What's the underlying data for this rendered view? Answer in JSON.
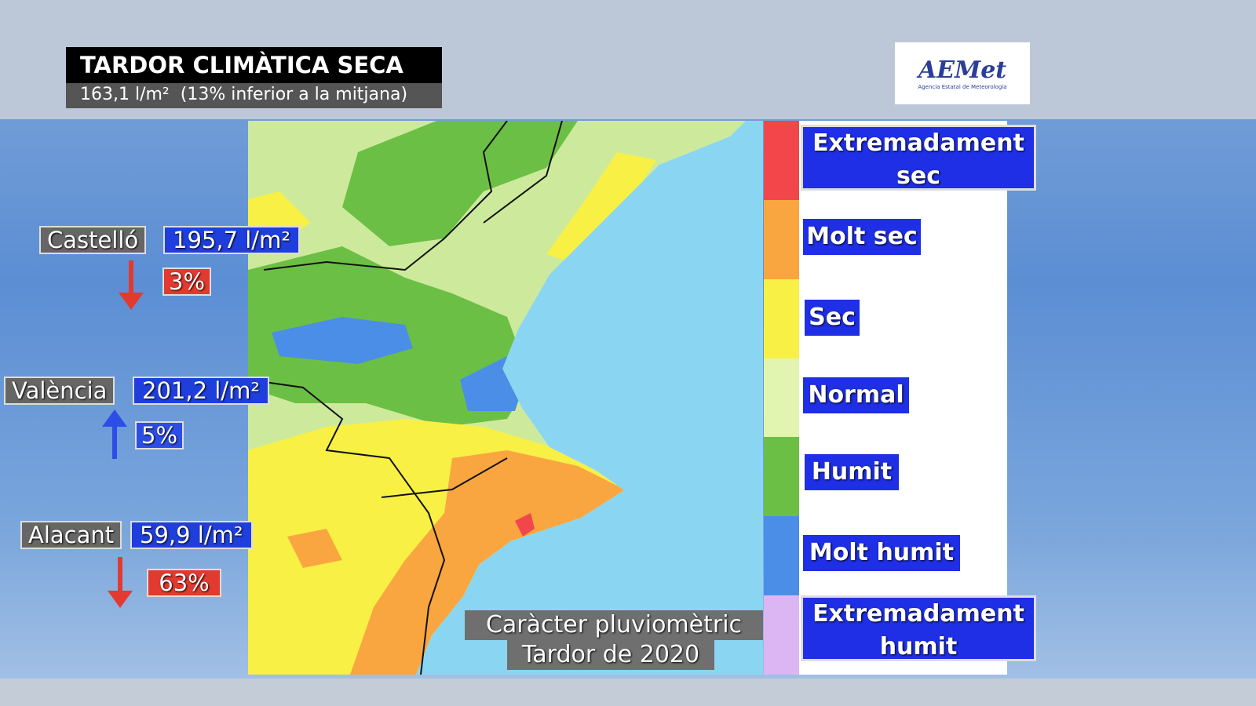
{
  "header": {
    "title": "TARDOR CLIMÀTICA SECA",
    "subtitle": "163,1 l/m²  (13% inferior a la mitjana)"
  },
  "logo": {
    "name": "AEMet",
    "agency": "Agencia Estatal de Meteorología"
  },
  "stations": [
    {
      "name": "Castelló",
      "amount": "195,7 l/m²",
      "change": "3%",
      "direction": "down"
    },
    {
      "name": "València",
      "amount": "201,2 l/m²",
      "change": "5%",
      "direction": "up"
    },
    {
      "name": "Alacant",
      "amount": "59,9 l/m²",
      "change": "63%",
      "direction": "down"
    }
  ],
  "legend": [
    {
      "label": "Extremadament sec",
      "color": "#f2474a"
    },
    {
      "label": "Molt sec",
      "color": "#f9a640"
    },
    {
      "label": "Sec",
      "color": "#f8f044"
    },
    {
      "label": "Normal",
      "color": "#e2f5b0"
    },
    {
      "label": "Humit",
      "color": "#6cbf45"
    },
    {
      "label": "Molt humit",
      "color": "#4a8ee8"
    },
    {
      "label": "Extremadament humit",
      "color": "#dcb6f2"
    }
  ],
  "map": {
    "caption": [
      "Caràcter pluviomètric",
      "Tardor de 2020"
    ]
  }
}
